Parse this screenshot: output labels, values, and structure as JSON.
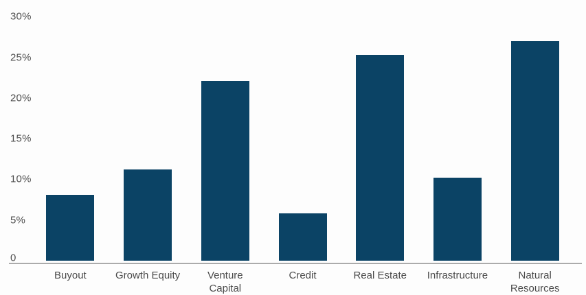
{
  "chart_data": {
    "type": "bar",
    "categories": [
      "Buyout",
      "Growth Equity",
      "Venture Capital",
      "Credit",
      "Real Estate",
      "Infrastructure",
      "Natural Resources"
    ],
    "values": [
      8.1,
      11.2,
      22.1,
      5.8,
      25.3,
      10.2,
      27.0
    ],
    "value_unit": "%",
    "ylim": [
      0,
      30
    ],
    "y_ticks": [
      "30%",
      "25%",
      "20%",
      "15%",
      "10%",
      "5%",
      "0"
    ],
    "grid": false,
    "legend": false,
    "colors": {
      "bar": "#0b4365",
      "axis_line": "#ababab",
      "y_tick_label": "#4f4f4f",
      "x_tick_label": "#4a4a4a",
      "background": "#fdfdfd"
    }
  }
}
